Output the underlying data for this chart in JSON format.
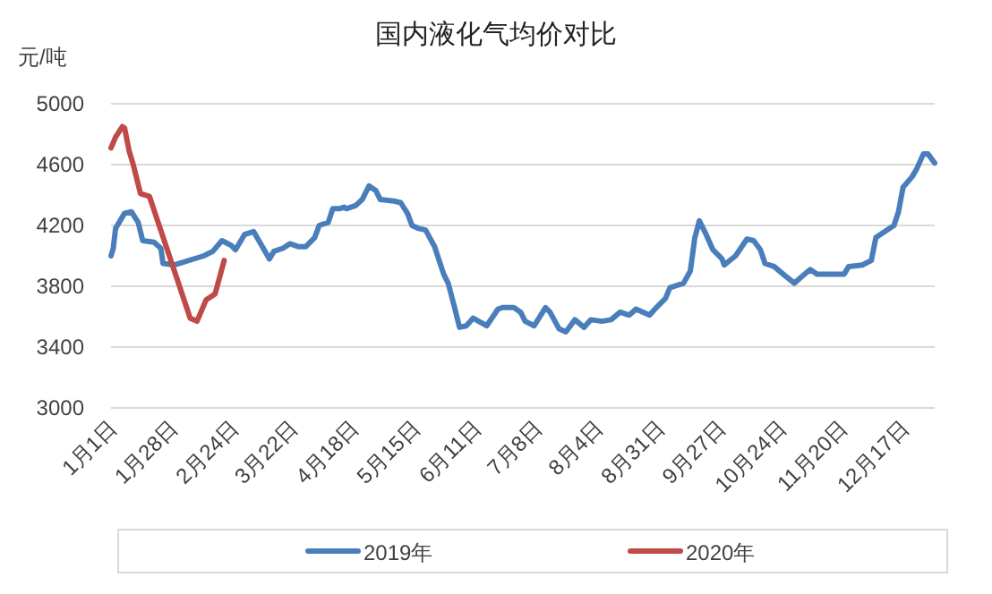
{
  "chart_data": {
    "type": "line",
    "title": "国内液化气均价对比",
    "ylabel": "元/吨",
    "xlim": [
      "--01-01",
      "--12-31"
    ],
    "xticks": [
      {
        "value": "--01-01",
        "label": "1月1日"
      },
      {
        "value": "--01-28",
        "label": "1月28日"
      },
      {
        "value": "--02-24",
        "label": "2月24日"
      },
      {
        "value": "--03-22",
        "label": "3月22日"
      },
      {
        "value": "--04-18",
        "label": "4月18日"
      },
      {
        "value": "--05-15",
        "label": "5月15日"
      },
      {
        "value": "--06-11",
        "label": "6月11日"
      },
      {
        "value": "--07-08",
        "label": "7月8日"
      },
      {
        "value": "--08-04",
        "label": "8月4日"
      },
      {
        "value": "--08-31",
        "label": "8月31日"
      },
      {
        "value": "--09-27",
        "label": "9月27日"
      },
      {
        "value": "--10-24",
        "label": "10月24日"
      },
      {
        "value": "--11-20",
        "label": "11月20日"
      },
      {
        "value": "--12-17",
        "label": "12月17日"
      }
    ],
    "ylim": [
      3000,
      5000
    ],
    "yticks": [
      3000,
      3400,
      3800,
      4200,
      4600,
      5000
    ],
    "grid": "y",
    "legend": "bottom",
    "line_style": "solid",
    "series": [
      {
        "name": "2019年",
        "color": "#4a7ebb",
        "x": [
          "--01-01",
          "--01-02",
          "--01-03",
          "--01-07",
          "--01-10",
          "--01-13",
          "--01-15",
          "--01-20",
          "--01-23",
          "--01-24",
          "--01-29",
          "--02-11",
          "--02-15",
          "--02-19",
          "--02-23",
          "--02-25",
          "--03-01",
          "--03-05",
          "--03-12",
          "--03-14",
          "--03-18",
          "--03-21",
          "--03-25",
          "--03-28",
          "--04-01",
          "--04-03",
          "--04-07",
          "--04-09",
          "--04-12",
          "--04-14",
          "--04-15",
          "--04-19",
          "--04-22",
          "--04-25",
          "--04-28",
          "--04-30",
          "--05-06",
          "--05-09",
          "--05-12",
          "--05-14",
          "--05-17",
          "--05-20",
          "--05-24",
          "--05-28",
          "--05-30",
          "--06-02",
          "--06-04",
          "--06-07",
          "--06-10",
          "--06-16",
          "--06-21",
          "--06-23",
          "--06-28",
          "--07-01",
          "--07-03",
          "--07-07",
          "--07-12",
          "--07-14",
          "--07-18",
          "--07-21",
          "--07-25",
          "--07-29",
          "--08-01",
          "--08-06",
          "--08-10",
          "--08-14",
          "--08-18",
          "--08-21",
          "--08-27",
          "--08-30",
          "--09-03",
          "--09-05",
          "--09-11",
          "--09-14",
          "--09-16",
          "--09-18",
          "--09-21",
          "--09-24",
          "--09-28",
          "--09-29",
          "--10-04",
          "--10-09",
          "--10-12",
          "--10-15",
          "--10-17",
          "--10-21",
          "--10-25",
          "--10-30",
          "--11-02",
          "--11-06",
          "--11-09",
          "--11-13",
          "--11-18",
          "--11-21",
          "--11-23",
          "--11-29",
          "--12-03",
          "--12-05",
          "--12-09",
          "--12-13",
          "--12-15",
          "--12-17",
          "--12-21",
          "--12-23",
          "--12-26",
          "--12-28",
          "--12-31"
        ],
        "values": [
          4000,
          4050,
          4180,
          4280,
          4290,
          4220,
          4100,
          4090,
          4050,
          3950,
          3940,
          4000,
          4030,
          4100,
          4070,
          4040,
          4140,
          4160,
          3980,
          4030,
          4050,
          4080,
          4060,
          4060,
          4120,
          4200,
          4220,
          4310,
          4310,
          4320,
          4310,
          4330,
          4370,
          4460,
          4430,
          4370,
          4360,
          4350,
          4280,
          4200,
          4180,
          4170,
          4060,
          3880,
          3820,
          3650,
          3530,
          3540,
          3590,
          3540,
          3650,
          3660,
          3660,
          3630,
          3570,
          3540,
          3660,
          3630,
          3520,
          3500,
          3580,
          3530,
          3580,
          3570,
          3580,
          3630,
          3610,
          3650,
          3610,
          3660,
          3720,
          3790,
          3820,
          3900,
          4120,
          4230,
          4140,
          4040,
          3980,
          3940,
          4000,
          4110,
          4100,
          4040,
          3950,
          3930,
          3880,
          3820,
          3860,
          3910,
          3880,
          3880,
          3880,
          3880,
          3930,
          3940,
          3970,
          4120,
          4160,
          4200,
          4290,
          4450,
          4520,
          4570,
          4670,
          4670,
          4610
        ]
      },
      {
        "name": "2020年",
        "color": "#be4b48",
        "x": [
          "--01-01",
          "--01-03",
          "--01-06",
          "--01-07",
          "--01-09",
          "--01-11",
          "--01-14",
          "--01-18",
          "--02-05",
          "--02-08",
          "--02-12",
          "--02-16",
          "--02-20"
        ],
        "values": [
          4710,
          4780,
          4850,
          4840,
          4690,
          4590,
          4410,
          4390,
          3590,
          3570,
          3710,
          3750,
          3970
        ]
      }
    ]
  }
}
